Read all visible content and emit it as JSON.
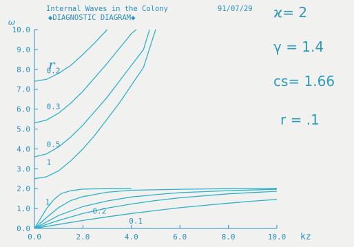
{
  "colors": {
    "curve": "#2fb0c9",
    "axis_text": "#2a8fc0",
    "param_text": "#2f9ab8",
    "background": "#f1f2ef"
  },
  "chart_data": {
    "type": "line",
    "title": "Internal Waves in the Colony",
    "date": "91/07/29",
    "subtitle": "◆DIAGNOSTIC DIAGRAM◆",
    "xlabel": "kz",
    "ylabel": "ω",
    "xlim": [
      0,
      10
    ],
    "ylim": [
      0,
      10
    ],
    "x_ticks": [
      "0.0",
      "2.0",
      "4.0",
      "6.0",
      "8.0",
      "10.0"
    ],
    "y_ticks": [
      "0.0",
      "1.0",
      "2.0",
      "3.0",
      "4.0",
      "5.0",
      "6.0",
      "7.0",
      "8.0",
      "9.0",
      "10.0"
    ],
    "legend_symbol": "r",
    "annotations": [
      {
        "text": "0.2",
        "x": 0.5,
        "y": 7.8
      },
      {
        "text": "0.3",
        "x": 0.5,
        "y": 6.0
      },
      {
        "text": "0.5",
        "x": 0.5,
        "y": 4.1
      },
      {
        "text": "1",
        "x": 0.5,
        "y": 3.2
      },
      {
        "text": "1",
        "x": 0.45,
        "y": 1.2
      },
      {
        "text": "0.2",
        "x": 2.4,
        "y": 0.75
      },
      {
        "text": "0.1",
        "x": 3.9,
        "y": 0.25
      }
    ],
    "series": [
      {
        "values": [
          [
            0.0,
            7.4
          ],
          [
            0.5,
            7.5
          ],
          [
            1.0,
            7.8
          ],
          [
            1.5,
            8.2
          ],
          [
            2.0,
            8.75
          ],
          [
            2.5,
            9.35
          ],
          [
            3.0,
            10.0
          ]
        ]
      },
      {
        "values": [
          [
            0.0,
            5.3
          ],
          [
            0.5,
            5.45
          ],
          [
            1.0,
            5.8
          ],
          [
            1.5,
            6.3
          ],
          [
            2.0,
            6.9
          ],
          [
            2.5,
            7.6
          ],
          [
            3.0,
            8.3
          ],
          [
            3.5,
            9.05
          ],
          [
            4.0,
            9.8
          ],
          [
            4.2,
            10.0
          ]
        ]
      },
      {
        "values": [
          [
            0.0,
            3.6
          ],
          [
            0.5,
            3.75
          ],
          [
            1.0,
            4.1
          ],
          [
            1.5,
            4.6
          ],
          [
            2.0,
            5.2
          ],
          [
            2.5,
            5.9
          ],
          [
            3.0,
            6.6
          ],
          [
            3.5,
            7.4
          ],
          [
            4.0,
            8.2
          ],
          [
            4.5,
            9.0
          ],
          [
            4.75,
            10.0
          ]
        ]
      },
      {
        "values": [
          [
            0.0,
            2.5
          ],
          [
            0.5,
            2.6
          ],
          [
            1.0,
            2.9
          ],
          [
            1.5,
            3.4
          ],
          [
            2.0,
            4.0
          ],
          [
            2.5,
            4.7
          ],
          [
            3.0,
            5.5
          ],
          [
            3.5,
            6.3
          ],
          [
            4.0,
            7.2
          ],
          [
            4.5,
            8.1
          ],
          [
            5.0,
            10.0
          ]
        ]
      },
      {
        "values": [
          [
            0.0,
            0.0
          ],
          [
            0.25,
            0.5
          ],
          [
            0.5,
            1.0
          ],
          [
            0.8,
            1.45
          ],
          [
            1.1,
            1.75
          ],
          [
            1.5,
            1.9
          ],
          [
            2.0,
            1.98
          ],
          [
            3.0,
            2.0
          ],
          [
            4.0,
            2.0
          ]
        ]
      },
      {
        "values": [
          [
            0.0,
            0.0
          ],
          [
            0.5,
            0.55
          ],
          [
            1.0,
            1.05
          ],
          [
            1.5,
            1.4
          ],
          [
            2.0,
            1.6
          ],
          [
            3.0,
            1.82
          ],
          [
            4.0,
            1.92
          ],
          [
            6.0,
            1.97
          ],
          [
            8.0,
            2.0
          ],
          [
            10.0,
            2.02
          ]
        ]
      },
      {
        "values": [
          [
            0.0,
            0.0
          ],
          [
            1.0,
            0.65
          ],
          [
            2.0,
            1.1
          ],
          [
            3.0,
            1.38
          ],
          [
            4.0,
            1.58
          ],
          [
            5.0,
            1.7
          ],
          [
            6.0,
            1.8
          ],
          [
            8.0,
            1.9
          ],
          [
            10.0,
            1.97
          ]
        ]
      },
      {
        "values": [
          [
            0.0,
            0.0
          ],
          [
            1.0,
            0.4
          ],
          [
            2.0,
            0.75
          ],
          [
            3.0,
            1.02
          ],
          [
            4.0,
            1.23
          ],
          [
            5.0,
            1.4
          ],
          [
            6.0,
            1.54
          ],
          [
            8.0,
            1.74
          ],
          [
            10.0,
            1.87
          ]
        ]
      },
      {
        "values": [
          [
            0.0,
            0.0
          ],
          [
            1.0,
            0.2
          ],
          [
            2.0,
            0.4
          ],
          [
            3.0,
            0.58
          ],
          [
            4.0,
            0.75
          ],
          [
            5.0,
            0.9
          ],
          [
            6.0,
            1.04
          ],
          [
            7.0,
            1.16
          ],
          [
            8.0,
            1.27
          ],
          [
            9.0,
            1.37
          ],
          [
            10.0,
            1.46
          ]
        ]
      }
    ]
  },
  "params": [
    {
      "text": "ϰ= 2"
    },
    {
      "text": "γ = 1.4"
    },
    {
      "text": "cs= 1.66"
    },
    {
      "text": "r = .1"
    }
  ]
}
